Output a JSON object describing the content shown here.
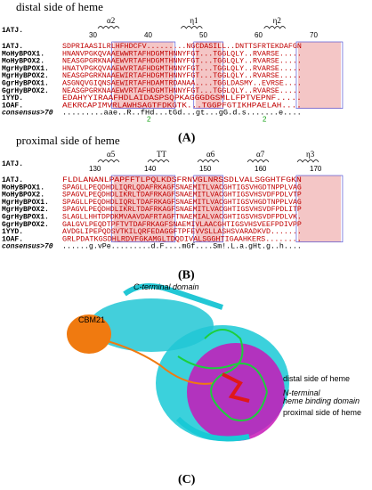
{
  "panel_a": {
    "title": "distal side of heme",
    "structure_ref": "1ATJ.",
    "secondary": [
      "α2",
      "η1",
      "η2"
    ],
    "ruler": [
      "30",
      "40",
      "50",
      "60",
      "70"
    ],
    "rows": [
      {
        "name": "1ATJ.",
        "seq": "SDPRIAASILRLHFHDCFV.........NGCDASILL..DNTTSFRTEKDAFGN"
      },
      {
        "name": "MoHyBPOX1.",
        "seq": "HNANVPGKQVAAEWWRTAFHDGMTHNNYFGT...TGGLQLY..RVARSE....."
      },
      {
        "name": "MoHyBPOX2.",
        "seq": "NEASGPGRKNAAEWVRTAFHDGMTHNNYFGT...TGGLQLY..RVARSE....."
      },
      {
        "name": "MgrHyBPOX1.",
        "seq": "HNATVPGKQVAAEWVRTAFHDGMTHNNYFGT...TGGLQLY..RVARSE....."
      },
      {
        "name": "MgrHyBPOX2.",
        "seq": "NEASGPGRKNAAEWIRTAFHDGMTHNNYFGT...TGGLQLY..RVARSE....."
      },
      {
        "name": "GgrHyBPOX1.",
        "seq": "ASGNQVGIQNSAEWIRTAFHDAMTRDANAA....TGGLDASMY..EVRSE...."
      },
      {
        "name": "GgrHyBPOX2.",
        "seq": "NEASGPGRKNAAEWVRTAFHDGMTHNNYFGT...TGGLQLY..RVARSE....."
      },
      {
        "name": "1YYD.",
        "seq": "EDAHYYIRAAFHDLAIDASPSQPKAGGGDGSMLLFPTVEPNF....."
      },
      {
        "name": "1OAF.",
        "seq": "AEKRCAPIMVRLAWHSAGTFDKGTK...TGGPFGTIKHPAELAH...."
      }
    ],
    "consensus": {
      "name": "consensus>70",
      "seq": ".........aae..R..fHd...tGd...gt...gG.d.s.......e...."
    },
    "marks": [
      "2",
      "2"
    ],
    "label": "(A)"
  },
  "panel_b": {
    "title": "proximal side of heme",
    "structure_ref": "1ATJ.",
    "secondary": [
      "α5",
      "TT",
      "α6",
      "α7",
      "η3"
    ],
    "ruler": [
      "130",
      "140",
      "150",
      "160",
      "170"
    ],
    "rows": [
      {
        "name": "1ATJ.",
        "seq": "FLDLANANLPAPFFTLPQLKDSFRNVGLNRSSDLVALSGGHTFGKN"
      },
      {
        "name": "MoHyBPOX1.",
        "seq": "SPAGLLPEQDHDLIQRLQDAFRKAGFSNAEMITLVACGHTIGSVHGDTNPPLVAG"
      },
      {
        "name": "MoHyBPOX2.",
        "seq": "SPAGVLPEQDHDLIKRLTDAFRKAGFSNAEMITLVACGHTIGSVHSVDFPDLVTP"
      },
      {
        "name": "MgrHyBPOX1.",
        "seq": "SPAGLLPEQDHDLIQRLTDAFRKAGFSNAEMITLVACGHTIGSVHGDTNPPLVAG"
      },
      {
        "name": "MgrHyBPOX2.",
        "seq": "SPAGVLPEQDHDLIKRLTDAFRKAGFSNAEMITLVACGHTIGSVHSVDFPDLITP"
      },
      {
        "name": "GgrHyBPOX1.",
        "seq": "SLAGLLHHTDPDKMVAAVDAFRTAGFTNAEMIALVACGHTIGSVHSVDFPDLVK."
      },
      {
        "name": "GgrHyBPOX2.",
        "seq": "GALGVLPEQDTPFTVTDAFRKAGFSNAEMIVLAACGHTIGSVHSVEEFPDIVPP"
      },
      {
        "name": "1YYD.",
        "seq": "AVDGLIPEPQDSVTKILQRFEDAGGFTPFEVVSLLASHSVARADKVD......."
      },
      {
        "name": "1OAF.",
        "seq": "GRLPDATKGSDHLRDVFGKAMGLTDQDIVALSGGHTIGAAHKERS........"
      }
    ],
    "consensus": {
      "name": "consensus>70",
      "seq": "......g.vPe.........d.F....mGf....Sm!.L.a.gHt.g..h...."
    },
    "label": "(B)"
  },
  "panel_c": {
    "labels": [
      "C-terminal domain",
      "CBM21",
      "distal side of heme",
      "N-terminal",
      "heme binding domain",
      "proximal side of heme"
    ],
    "label": "(C)"
  }
}
